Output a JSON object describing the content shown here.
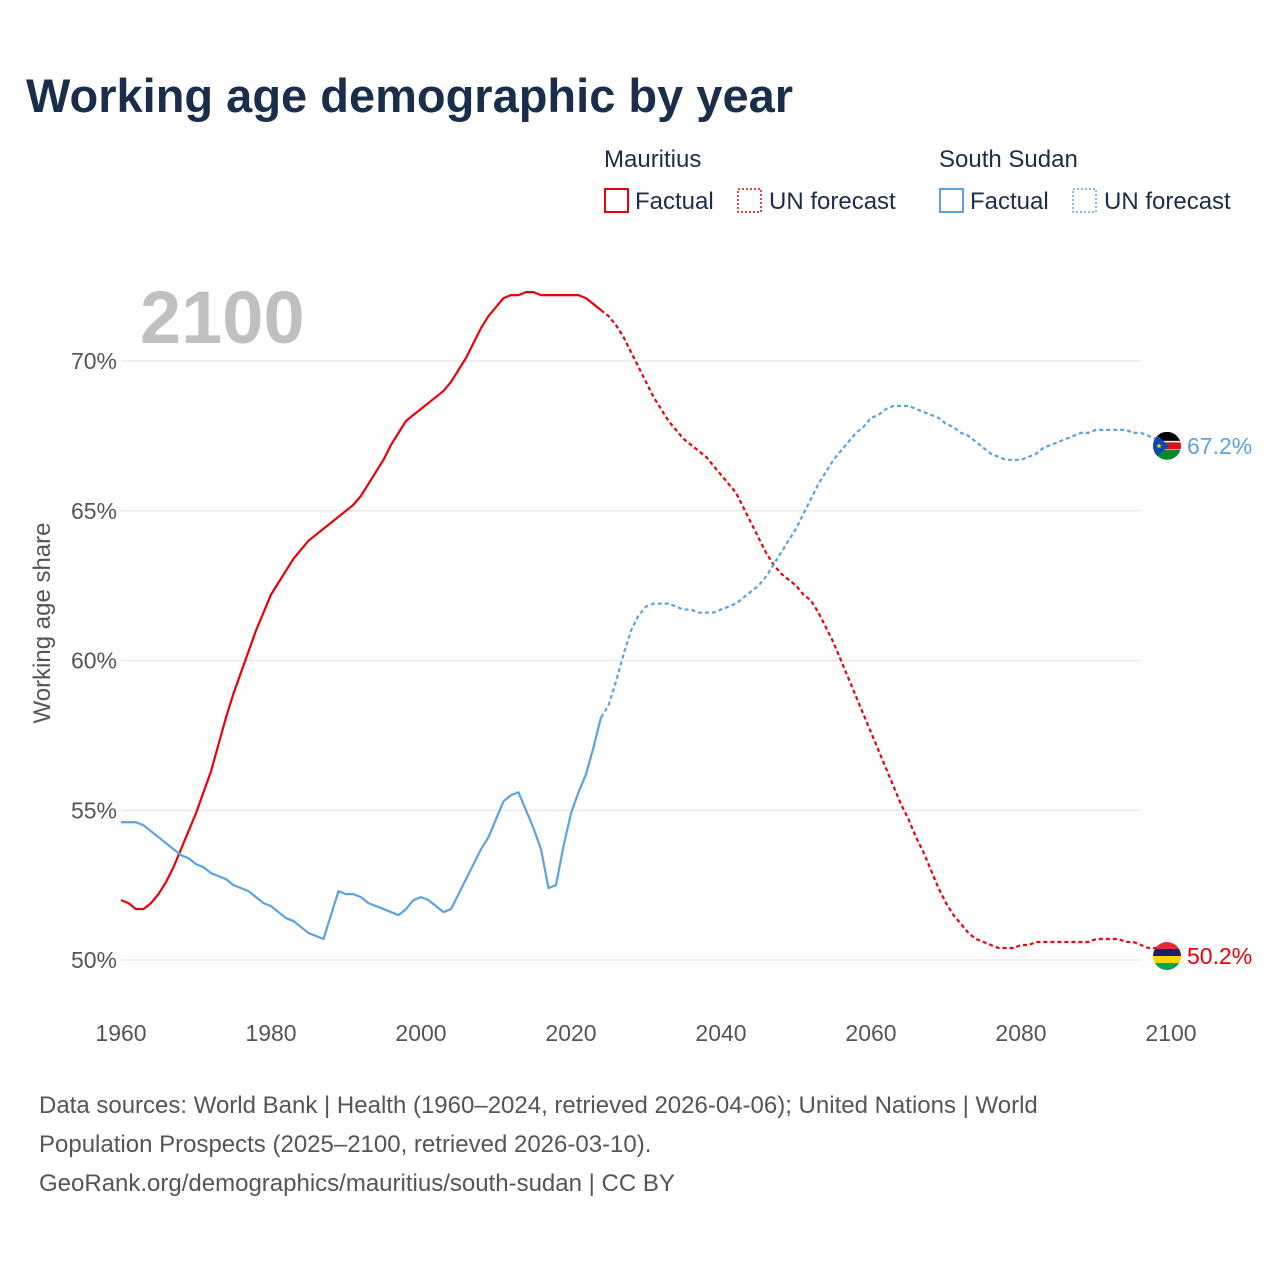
{
  "title": "Working age demographic by year",
  "year_label": "2100",
  "legend": [
    {
      "country": "Mauritius",
      "factual_label": "Factual",
      "forecast_label": "UN forecast",
      "color": "#e8000b"
    },
    {
      "country": "South Sudan",
      "factual_label": "Factual",
      "forecast_label": "UN forecast",
      "color": "#5ba3e0"
    }
  ],
  "end_labels": {
    "mauritius": "50.2%",
    "south_sudan": "67.2%"
  },
  "source_lines": [
    "Data sources: World Bank | Health (1960–2024, retrieved 2026-04-06); United Nations | World",
    "Population Prospects (2025–2100, retrieved 2026-03-10).",
    "GeoRank.org/demographics/mauritius/south-sudan | CC BY"
  ],
  "chart_data": {
    "type": "line",
    "title": "Working age demographic by year",
    "xlabel": "",
    "ylabel": "Working age share",
    "xlim": [
      1960,
      2103
    ],
    "ylim": [
      49,
      72.7
    ],
    "x_ticks": [
      1960,
      1980,
      2000,
      2020,
      2040,
      2060,
      2080,
      2100
    ],
    "y_ticks": [
      50,
      55,
      60,
      65,
      70
    ],
    "y_tick_labels": [
      "50%",
      "55%",
      "60%",
      "65%",
      "70%"
    ],
    "factual_range": [
      1960,
      2024
    ],
    "forecast_range": [
      2025,
      2100
    ],
    "series": [
      {
        "name": "Mauritius",
        "color": "#e8000b",
        "points": [
          [
            1960,
            52.0
          ],
          [
            1961,
            51.9
          ],
          [
            1962,
            51.7
          ],
          [
            1963,
            51.7
          ],
          [
            1964,
            51.9
          ],
          [
            1965,
            52.2
          ],
          [
            1966,
            52.6
          ],
          [
            1967,
            53.1
          ],
          [
            1968,
            53.7
          ],
          [
            1969,
            54.3
          ],
          [
            1970,
            54.9
          ],
          [
            1971,
            55.6
          ],
          [
            1972,
            56.3
          ],
          [
            1973,
            57.2
          ],
          [
            1974,
            58.1
          ],
          [
            1975,
            58.9
          ],
          [
            1976,
            59.6
          ],
          [
            1977,
            60.3
          ],
          [
            1978,
            61.0
          ],
          [
            1979,
            61.6
          ],
          [
            1980,
            62.2
          ],
          [
            1981,
            62.6
          ],
          [
            1982,
            63.0
          ],
          [
            1983,
            63.4
          ],
          [
            1984,
            63.7
          ],
          [
            1985,
            64.0
          ],
          [
            1986,
            64.2
          ],
          [
            1987,
            64.4
          ],
          [
            1988,
            64.6
          ],
          [
            1989,
            64.8
          ],
          [
            1990,
            65.0
          ],
          [
            1991,
            65.2
          ],
          [
            1992,
            65.5
          ],
          [
            1993,
            65.9
          ],
          [
            1994,
            66.3
          ],
          [
            1995,
            66.7
          ],
          [
            1996,
            67.2
          ],
          [
            1997,
            67.6
          ],
          [
            1998,
            68.0
          ],
          [
            1999,
            68.2
          ],
          [
            2000,
            68.4
          ],
          [
            2001,
            68.6
          ],
          [
            2002,
            68.8
          ],
          [
            2003,
            69.0
          ],
          [
            2004,
            69.3
          ],
          [
            2005,
            69.7
          ],
          [
            2006,
            70.1
          ],
          [
            2007,
            70.6
          ],
          [
            2008,
            71.1
          ],
          [
            2009,
            71.5
          ],
          [
            2010,
            71.8
          ],
          [
            2011,
            72.1
          ],
          [
            2012,
            72.2
          ],
          [
            2013,
            72.2
          ],
          [
            2014,
            72.3
          ],
          [
            2015,
            72.3
          ],
          [
            2016,
            72.2
          ],
          [
            2017,
            72.2
          ],
          [
            2018,
            72.2
          ],
          [
            2019,
            72.2
          ],
          [
            2020,
            72.2
          ],
          [
            2021,
            72.2
          ],
          [
            2022,
            72.1
          ],
          [
            2023,
            71.9
          ],
          [
            2024,
            71.7
          ],
          [
            2025,
            71.5
          ],
          [
            2026,
            71.2
          ],
          [
            2027,
            70.8
          ],
          [
            2028,
            70.3
          ],
          [
            2029,
            69.8
          ],
          [
            2030,
            69.3
          ],
          [
            2031,
            68.8
          ],
          [
            2032,
            68.4
          ],
          [
            2033,
            68.0
          ],
          [
            2034,
            67.7
          ],
          [
            2035,
            67.4
          ],
          [
            2036,
            67.2
          ],
          [
            2037,
            67.0
          ],
          [
            2038,
            66.8
          ],
          [
            2039,
            66.5
          ],
          [
            2040,
            66.2
          ],
          [
            2041,
            65.9
          ],
          [
            2042,
            65.6
          ],
          [
            2043,
            65.1
          ],
          [
            2044,
            64.6
          ],
          [
            2045,
            64.1
          ],
          [
            2046,
            63.6
          ],
          [
            2047,
            63.2
          ],
          [
            2048,
            62.9
          ],
          [
            2049,
            62.7
          ],
          [
            2050,
            62.5
          ],
          [
            2051,
            62.2
          ],
          [
            2052,
            62.0
          ],
          [
            2053,
            61.6
          ],
          [
            2054,
            61.1
          ],
          [
            2055,
            60.6
          ],
          [
            2056,
            60.0
          ],
          [
            2057,
            59.4
          ],
          [
            2058,
            58.8
          ],
          [
            2059,
            58.2
          ],
          [
            2060,
            57.6
          ],
          [
            2061,
            57.0
          ],
          [
            2062,
            56.4
          ],
          [
            2063,
            55.8
          ],
          [
            2064,
            55.2
          ],
          [
            2065,
            54.7
          ],
          [
            2066,
            54.1
          ],
          [
            2067,
            53.6
          ],
          [
            2068,
            53.0
          ],
          [
            2069,
            52.4
          ],
          [
            2070,
            51.9
          ],
          [
            2071,
            51.5
          ],
          [
            2072,
            51.2
          ],
          [
            2073,
            50.9
          ],
          [
            2074,
            50.7
          ],
          [
            2075,
            50.6
          ],
          [
            2076,
            50.5
          ],
          [
            2077,
            50.4
          ],
          [
            2078,
            50.4
          ],
          [
            2079,
            50.4
          ],
          [
            2080,
            50.5
          ],
          [
            2081,
            50.5
          ],
          [
            2082,
            50.6
          ],
          [
            2083,
            50.6
          ],
          [
            2084,
            50.6
          ],
          [
            2085,
            50.6
          ],
          [
            2086,
            50.6
          ],
          [
            2087,
            50.6
          ],
          [
            2088,
            50.6
          ],
          [
            2089,
            50.6
          ],
          [
            2090,
            50.7
          ],
          [
            2091,
            50.7
          ],
          [
            2092,
            50.7
          ],
          [
            2093,
            50.7
          ],
          [
            2094,
            50.6
          ],
          [
            2095,
            50.6
          ],
          [
            2096,
            50.5
          ],
          [
            2097,
            50.4
          ],
          [
            2098,
            50.4
          ],
          [
            2099,
            50.3
          ],
          [
            2100,
            50.2
          ]
        ]
      },
      {
        "name": "South Sudan",
        "color": "#5ba3e0",
        "points": [
          [
            1960,
            54.6
          ],
          [
            1961,
            54.6
          ],
          [
            1962,
            54.6
          ],
          [
            1963,
            54.5
          ],
          [
            1964,
            54.3
          ],
          [
            1965,
            54.1
          ],
          [
            1966,
            53.9
          ],
          [
            1967,
            53.7
          ],
          [
            1968,
            53.5
          ],
          [
            1969,
            53.4
          ],
          [
            1970,
            53.2
          ],
          [
            1971,
            53.1
          ],
          [
            1972,
            52.9
          ],
          [
            1973,
            52.8
          ],
          [
            1974,
            52.7
          ],
          [
            1975,
            52.5
          ],
          [
            1976,
            52.4
          ],
          [
            1977,
            52.3
          ],
          [
            1978,
            52.1
          ],
          [
            1979,
            51.9
          ],
          [
            1980,
            51.8
          ],
          [
            1981,
            51.6
          ],
          [
            1982,
            51.4
          ],
          [
            1983,
            51.3
          ],
          [
            1984,
            51.1
          ],
          [
            1985,
            50.9
          ],
          [
            1986,
            50.8
          ],
          [
            1987,
            50.7
          ],
          [
            1988,
            51.5
          ],
          [
            1989,
            52.3
          ],
          [
            1990,
            52.2
          ],
          [
            1991,
            52.2
          ],
          [
            1992,
            52.1
          ],
          [
            1993,
            51.9
          ],
          [
            1994,
            51.8
          ],
          [
            1995,
            51.7
          ],
          [
            1996,
            51.6
          ],
          [
            1997,
            51.5
          ],
          [
            1998,
            51.7
          ],
          [
            1999,
            52.0
          ],
          [
            2000,
            52.1
          ],
          [
            2001,
            52.0
          ],
          [
            2002,
            51.8
          ],
          [
            2003,
            51.6
          ],
          [
            2004,
            51.7
          ],
          [
            2005,
            52.2
          ],
          [
            2006,
            52.7
          ],
          [
            2007,
            53.2
          ],
          [
            2008,
            53.7
          ],
          [
            2009,
            54.1
          ],
          [
            2010,
            54.7
          ],
          [
            2011,
            55.3
          ],
          [
            2012,
            55.5
          ],
          [
            2013,
            55.6
          ],
          [
            2014,
            55.0
          ],
          [
            2015,
            54.4
          ],
          [
            2016,
            53.7
          ],
          [
            2017,
            52.4
          ],
          [
            2018,
            52.5
          ],
          [
            2019,
            53.8
          ],
          [
            2020,
            54.9
          ],
          [
            2021,
            55.6
          ],
          [
            2022,
            56.2
          ],
          [
            2023,
            57.1
          ],
          [
            2024,
            58.1
          ],
          [
            2025,
            58.5
          ],
          [
            2026,
            59.3
          ],
          [
            2027,
            60.2
          ],
          [
            2028,
            61.0
          ],
          [
            2029,
            61.5
          ],
          [
            2030,
            61.8
          ],
          [
            2031,
            61.9
          ],
          [
            2032,
            61.9
          ],
          [
            2033,
            61.9
          ],
          [
            2034,
            61.8
          ],
          [
            2035,
            61.7
          ],
          [
            2036,
            61.7
          ],
          [
            2037,
            61.6
          ],
          [
            2038,
            61.6
          ],
          [
            2039,
            61.6
          ],
          [
            2040,
            61.7
          ],
          [
            2041,
            61.8
          ],
          [
            2042,
            61.9
          ],
          [
            2043,
            62.1
          ],
          [
            2044,
            62.3
          ],
          [
            2045,
            62.5
          ],
          [
            2046,
            62.8
          ],
          [
            2047,
            63.2
          ],
          [
            2048,
            63.6
          ],
          [
            2049,
            64.0
          ],
          [
            2050,
            64.4
          ],
          [
            2051,
            64.9
          ],
          [
            2052,
            65.4
          ],
          [
            2053,
            65.9
          ],
          [
            2054,
            66.3
          ],
          [
            2055,
            66.7
          ],
          [
            2056,
            67.0
          ],
          [
            2057,
            67.3
          ],
          [
            2058,
            67.6
          ],
          [
            2059,
            67.8
          ],
          [
            2060,
            68.1
          ],
          [
            2061,
            68.2
          ],
          [
            2062,
            68.4
          ],
          [
            2063,
            68.5
          ],
          [
            2064,
            68.5
          ],
          [
            2065,
            68.5
          ],
          [
            2066,
            68.4
          ],
          [
            2067,
            68.3
          ],
          [
            2068,
            68.2
          ],
          [
            2069,
            68.1
          ],
          [
            2070,
            67.9
          ],
          [
            2071,
            67.8
          ],
          [
            2072,
            67.6
          ],
          [
            2073,
            67.5
          ],
          [
            2074,
            67.3
          ],
          [
            2075,
            67.1
          ],
          [
            2076,
            66.9
          ],
          [
            2077,
            66.8
          ],
          [
            2078,
            66.7
          ],
          [
            2079,
            66.7
          ],
          [
            2080,
            66.7
          ],
          [
            2081,
            66.8
          ],
          [
            2082,
            66.9
          ],
          [
            2083,
            67.1
          ],
          [
            2084,
            67.2
          ],
          [
            2085,
            67.3
          ],
          [
            2086,
            67.4
          ],
          [
            2087,
            67.5
          ],
          [
            2088,
            67.6
          ],
          [
            2089,
            67.6
          ],
          [
            2090,
            67.7
          ],
          [
            2091,
            67.7
          ],
          [
            2092,
            67.7
          ],
          [
            2093,
            67.7
          ],
          [
            2094,
            67.7
          ],
          [
            2095,
            67.6
          ],
          [
            2096,
            67.6
          ],
          [
            2097,
            67.5
          ],
          [
            2098,
            67.4
          ],
          [
            2099,
            67.3
          ],
          [
            2100,
            67.2
          ]
        ]
      }
    ]
  },
  "colors": {
    "title": "#1a2e4a",
    "mauritius": "#e8000b",
    "south_sudan": "#5ba3e0",
    "grid": "#e6e6e6",
    "tick": "#555555",
    "year_watermark": "#c0c0c0"
  },
  "icons": {
    "mauritius_flag": "mauritius-flag-icon",
    "south_sudan_flag": "south-sudan-flag-icon"
  }
}
